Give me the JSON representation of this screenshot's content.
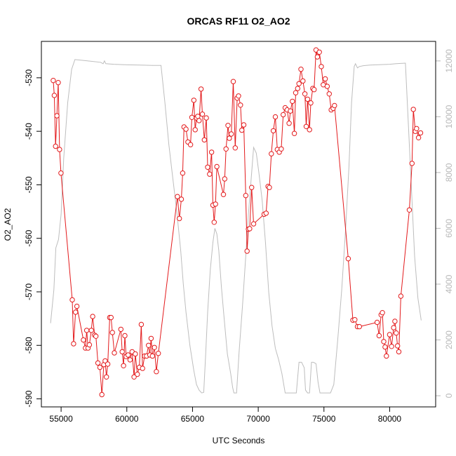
{
  "chart_data": {
    "type": "line",
    "title": "ORCAS RF11 O2_AO2",
    "xlabel": "UTC Seconds",
    "ylabel": "O2_AO2",
    "y2label": "",
    "xlim": [
      53500,
      83500
    ],
    "ylim": [
      -591.5,
      -523.2
    ],
    "y2lim": [
      -400,
      12700
    ],
    "x_ticks": [
      55000,
      60000,
      65000,
      70000,
      75000,
      80000
    ],
    "y_ticks": [
      -590,
      -580,
      -570,
      -560,
      -550,
      -540,
      -530
    ],
    "y2_ticks": [
      0,
      2000,
      4000,
      6000,
      8000,
      10000,
      12000
    ],
    "grid": false,
    "legend": "none",
    "colors": {
      "o2": "#e31a1c",
      "altitude": "#bdbdbd"
    },
    "series": [
      {
        "axis": "left",
        "style": "line+markers",
        "color": "#e31a1c",
        "points": [
          [
            54400,
            -530.5
          ],
          [
            54480,
            -533.3
          ],
          [
            54580,
            -542.8
          ],
          [
            54680,
            -537.1
          ],
          [
            54780,
            -530.9
          ],
          [
            54880,
            -543.4
          ],
          [
            54990,
            -547.8
          ],
          [
            55850,
            -571.5
          ],
          [
            55950,
            -579.7
          ],
          [
            56100,
            -573.8
          ],
          [
            56200,
            -572.7
          ],
          [
            56700,
            -579.0
          ],
          [
            56850,
            -580.5
          ],
          [
            56950,
            -577.2
          ],
          [
            57050,
            -580.5
          ],
          [
            57150,
            -579.9
          ],
          [
            57300,
            -577.2
          ],
          [
            57400,
            -574.6
          ],
          [
            57550,
            -578.1
          ],
          [
            57650,
            -578.3
          ],
          [
            57800,
            -583.3
          ],
          [
            57950,
            -584.1
          ],
          [
            58100,
            -589.2
          ],
          [
            58250,
            -583.6
          ],
          [
            58350,
            -582.9
          ],
          [
            58450,
            -585.9
          ],
          [
            58550,
            -583.5
          ],
          [
            58700,
            -574.8
          ],
          [
            58800,
            -574.8
          ],
          [
            58900,
            -577.6
          ],
          [
            59050,
            -581.4
          ],
          [
            59550,
            -577.0
          ],
          [
            59650,
            -581.2
          ],
          [
            59750,
            -583.8
          ],
          [
            59850,
            -578.2
          ],
          [
            59950,
            -582.1
          ],
          [
            60100,
            -581.8
          ],
          [
            60250,
            -582.7
          ],
          [
            60400,
            -581.2
          ],
          [
            60550,
            -585.9
          ],
          [
            60650,
            -581.6
          ],
          [
            60800,
            -585.4
          ],
          [
            60950,
            -584.1
          ],
          [
            61100,
            -576.1
          ],
          [
            61200,
            -584.3
          ],
          [
            61350,
            -582.0
          ],
          [
            61500,
            -582.0
          ],
          [
            61650,
            -580.0
          ],
          [
            61750,
            -581.8
          ],
          [
            61850,
            -578.7
          ],
          [
            61950,
            -582.0
          ],
          [
            62100,
            -580.4
          ],
          [
            62250,
            -584.9
          ],
          [
            62400,
            -581.5
          ],
          [
            63850,
            -552.2
          ],
          [
            64000,
            -556.3
          ],
          [
            64150,
            -552.7
          ],
          [
            64250,
            -547.8
          ],
          [
            64350,
            -539.2
          ],
          [
            64500,
            -539.6
          ],
          [
            64650,
            -542.0
          ],
          [
            64850,
            -542.5
          ],
          [
            64950,
            -537.4
          ],
          [
            65100,
            -534.2
          ],
          [
            65200,
            -539.7
          ],
          [
            65300,
            -537.5
          ],
          [
            65400,
            -537.2
          ],
          [
            65500,
            -538.0
          ],
          [
            65650,
            -532.1
          ],
          [
            65750,
            -536.8
          ],
          [
            65900,
            -541.6
          ],
          [
            66050,
            -537.5
          ],
          [
            66150,
            -546.7
          ],
          [
            66300,
            -548.0
          ],
          [
            66450,
            -543.9
          ],
          [
            66550,
            -553.8
          ],
          [
            66650,
            -557.0
          ],
          [
            66750,
            -553.6
          ],
          [
            66850,
            -546.6
          ],
          [
            67350,
            -551.8
          ],
          [
            67450,
            -548.9
          ],
          [
            67550,
            -543.3
          ],
          [
            67700,
            -538.9
          ],
          [
            67800,
            -541.3
          ],
          [
            67950,
            -540.5
          ],
          [
            68100,
            -530.7
          ],
          [
            68250,
            -543.1
          ],
          [
            68400,
            -533.8
          ],
          [
            68500,
            -533.4
          ],
          [
            68650,
            -535.1
          ],
          [
            68750,
            -539.8
          ],
          [
            68900,
            -538.8
          ],
          [
            69050,
            -552.0
          ],
          [
            69150,
            -562.4
          ],
          [
            69250,
            -558.3
          ],
          [
            69350,
            -558.2
          ],
          [
            69500,
            -550.5
          ],
          [
            69650,
            -557.3
          ],
          [
            70450,
            -555.5
          ],
          [
            70600,
            -555.3
          ],
          [
            70750,
            -550.3
          ],
          [
            70850,
            -550.5
          ],
          [
            71000,
            -544.2
          ],
          [
            71150,
            -539.9
          ],
          [
            71300,
            -537.3
          ],
          [
            71450,
            -543.4
          ],
          [
            71600,
            -543.9
          ],
          [
            71750,
            -543.3
          ],
          [
            71900,
            -536.9
          ],
          [
            72050,
            -535.6
          ],
          [
            72200,
            -536.0
          ],
          [
            72350,
            -538.5
          ],
          [
            72450,
            -536.2
          ],
          [
            72600,
            -534.4
          ],
          [
            72750,
            -540.4
          ],
          [
            72850,
            -532.8
          ],
          [
            73000,
            -532.0
          ],
          [
            73100,
            -531.1
          ],
          [
            73250,
            -528.4
          ],
          [
            73400,
            -530.6
          ],
          [
            73550,
            -533.0
          ],
          [
            73650,
            -539.1
          ],
          [
            73750,
            -534.0
          ],
          [
            73900,
            -539.7
          ],
          [
            74000,
            -534.7
          ],
          [
            74150,
            -532.0
          ],
          [
            74250,
            -532.2
          ],
          [
            74400,
            -524.8
          ],
          [
            74500,
            -526.1
          ],
          [
            74650,
            -525.2
          ],
          [
            74800,
            -527.9
          ],
          [
            74950,
            -531.3
          ],
          [
            75100,
            -530.2
          ],
          [
            75250,
            -531.6
          ],
          [
            75400,
            -533.0
          ],
          [
            75550,
            -536.0
          ],
          [
            75700,
            -535.7
          ],
          [
            75800,
            -535.2
          ],
          [
            76850,
            -563.8
          ],
          [
            77200,
            -575.3
          ],
          [
            77350,
            -575.2
          ],
          [
            77550,
            -576.5
          ],
          [
            77700,
            -576.5
          ],
          [
            79050,
            -575.7
          ],
          [
            79200,
            -578.2
          ],
          [
            79350,
            -574.3
          ],
          [
            79450,
            -573.9
          ],
          [
            79550,
            -579.3
          ],
          [
            79650,
            -580.3
          ],
          [
            79750,
            -582.0
          ],
          [
            80000,
            -578.0
          ],
          [
            80150,
            -580.2
          ],
          [
            80300,
            -576.7
          ],
          [
            80400,
            -575.5
          ],
          [
            80500,
            -577.7
          ],
          [
            80600,
            -580.1
          ],
          [
            80700,
            -581.2
          ],
          [
            80850,
            -570.8
          ],
          [
            81500,
            -554.7
          ],
          [
            81700,
            -546.0
          ],
          [
            81800,
            -535.9
          ],
          [
            81950,
            -540.0
          ],
          [
            82050,
            -539.5
          ],
          [
            82200,
            -541.2
          ],
          [
            82350,
            -540.3
          ]
        ]
      },
      {
        "axis": "right",
        "style": "line",
        "color": "#bdbdbd",
        "points": [
          [
            54200,
            2600
          ],
          [
            54450,
            3800
          ],
          [
            54600,
            5300
          ],
          [
            54800,
            5600
          ],
          [
            55000,
            6500
          ],
          [
            55200,
            8500
          ],
          [
            55500,
            10500
          ],
          [
            55800,
            11700
          ],
          [
            56050,
            12050
          ],
          [
            57000,
            12000
          ],
          [
            58000,
            11950
          ],
          [
            58200,
            11900
          ],
          [
            58300,
            12000
          ],
          [
            58400,
            11900
          ],
          [
            59000,
            11880
          ],
          [
            60000,
            11860
          ],
          [
            61000,
            11850
          ],
          [
            62000,
            11840
          ],
          [
            62600,
            11840
          ],
          [
            62900,
            10500
          ],
          [
            63200,
            9000
          ],
          [
            63500,
            7800
          ],
          [
            63800,
            6600
          ],
          [
            64100,
            5200
          ],
          [
            64300,
            4000
          ],
          [
            64500,
            3000
          ],
          [
            64800,
            1800
          ],
          [
            65100,
            900
          ],
          [
            65300,
            400
          ],
          [
            65500,
            200
          ],
          [
            65700,
            100
          ],
          [
            65850,
            120
          ],
          [
            66000,
            1500
          ],
          [
            66150,
            3000
          ],
          [
            66350,
            4500
          ],
          [
            66550,
            5500
          ],
          [
            66700,
            6000
          ],
          [
            66850,
            5800
          ],
          [
            67000,
            5200
          ],
          [
            67200,
            3900
          ],
          [
            67400,
            2800
          ],
          [
            67650,
            1500
          ],
          [
            67900,
            800
          ],
          [
            68050,
            300
          ],
          [
            68150,
            100
          ],
          [
            68350,
            100
          ],
          [
            68550,
            1600
          ],
          [
            68800,
            3200
          ],
          [
            69050,
            5000
          ],
          [
            69250,
            6500
          ],
          [
            69450,
            7700
          ],
          [
            69650,
            8900
          ],
          [
            69850,
            8700
          ],
          [
            70050,
            8000
          ],
          [
            70300,
            7000
          ],
          [
            70550,
            5500
          ],
          [
            70800,
            3700
          ],
          [
            71050,
            2500
          ],
          [
            71300,
            1700
          ],
          [
            71550,
            1300
          ],
          [
            71800,
            800
          ],
          [
            72050,
            100
          ],
          [
            72400,
            100
          ],
          [
            72700,
            100
          ],
          [
            72900,
            100
          ],
          [
            73100,
            1200
          ],
          [
            73300,
            1200
          ],
          [
            73500,
            1000
          ],
          [
            73600,
            200
          ],
          [
            73750,
            100
          ],
          [
            73900,
            100
          ],
          [
            74050,
            1200
          ],
          [
            74200,
            1200
          ],
          [
            74400,
            1150
          ],
          [
            74550,
            500
          ],
          [
            74700,
            100
          ],
          [
            75000,
            100
          ],
          [
            75300,
            100
          ],
          [
            75500,
            100
          ],
          [
            75750,
            400
          ],
          [
            76050,
            2000
          ],
          [
            76350,
            3800
          ],
          [
            76650,
            6000
          ],
          [
            76900,
            8200
          ],
          [
            77100,
            10500
          ],
          [
            77300,
            11800
          ],
          [
            77400,
            11900
          ],
          [
            77550,
            11750
          ],
          [
            77700,
            11800
          ],
          [
            78000,
            11830
          ],
          [
            78500,
            11850
          ],
          [
            79000,
            11860
          ],
          [
            80000,
            11880
          ],
          [
            80500,
            11900
          ],
          [
            81200,
            11920
          ],
          [
            81600,
            8000
          ],
          [
            81900,
            5000
          ],
          [
            82150,
            3500
          ],
          [
            82400,
            2700
          ]
        ]
      }
    ]
  }
}
